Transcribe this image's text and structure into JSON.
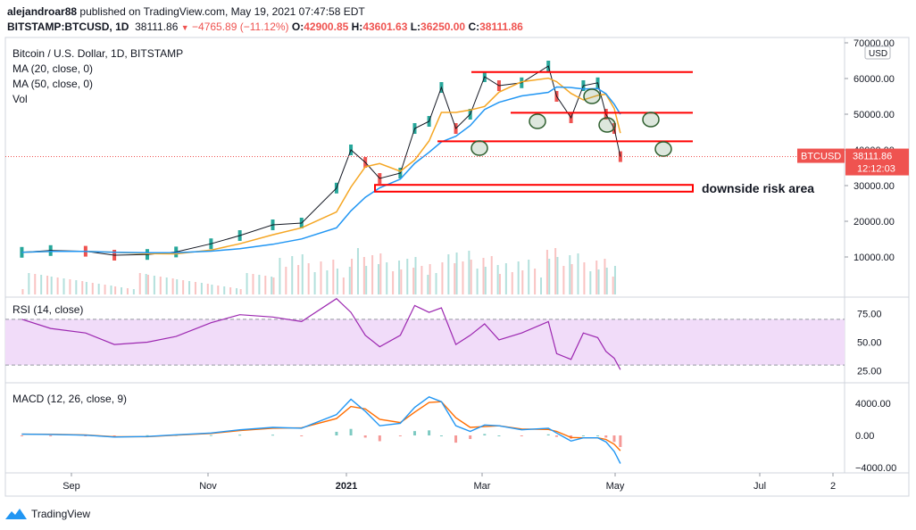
{
  "header": {
    "user": "alejandroar88",
    "published_text": "published on TradingView.com, May 19, 2021 07:47:58 EDT",
    "symbol": "BITSTAMP:BTCUSD, 1D",
    "last": "38111.86",
    "change": "−4765.89 (−11.12%)",
    "open_label": "O:",
    "open": "42900.85",
    "high_label": "H:",
    "high": "43601.63",
    "low_label": "L:",
    "low": "36250.00",
    "close_label": "C:",
    "close": "38111.86"
  },
  "legend": {
    "title": "Bitcoin / U.S. Dollar, 1D, BITSTAMP",
    "ma20": "MA (20, close, 0)",
    "ma50": "MA (50, close, 0)",
    "vol": "Vol",
    "rsi": "RSI (14, close)",
    "macd": "MACD (12, 26, close, 9)"
  },
  "price_axis": {
    "currency": "USD",
    "ticks": [
      "70000.00",
      "60000.00",
      "50000.00",
      "40000.00",
      "30000.00",
      "20000.00",
      "10000.00"
    ],
    "tag_symbol": "BTCUSD",
    "tag_price": "38111.86",
    "tag_countdown": "12:12:03"
  },
  "rsi_axis": {
    "ticks": [
      "75.00",
      "50.00",
      "25.00"
    ]
  },
  "macd_axis": {
    "ticks": [
      "4000.00",
      "0.00",
      "−4000.00"
    ]
  },
  "time_axis": {
    "labels": [
      "Sep",
      "Nov",
      "2021",
      "Mar",
      "May",
      "Jul",
      "2"
    ]
  },
  "annotation": {
    "downside": "downside risk area"
  },
  "footer": {
    "brand": "TradingView"
  },
  "colors": {
    "up": "#26a69a",
    "down": "#ef5350",
    "ma20": "#f5a623",
    "ma50": "#2196f3",
    "rsi_line": "#9c27b0",
    "rsi_band": "#f1dcf9",
    "macd_line": "#2196f3",
    "signal_line": "#ff6d00",
    "annot": "#ff0000",
    "tag_bg": "#ef5350"
  },
  "chart_data": {
    "type": "line",
    "title": "Bitcoin / U.S. Dollar, 1D, BITSTAMP",
    "x": [
      "2020-08-01",
      "2020-08-15",
      "2020-09-01",
      "2020-09-15",
      "2020-10-01",
      "2020-10-15",
      "2020-11-01",
      "2020-11-15",
      "2020-12-01",
      "2020-12-15",
      "2021-01-01",
      "2021-01-08",
      "2021-01-15",
      "2021-01-22",
      "2021-02-01",
      "2021-02-08",
      "2021-02-15",
      "2021-02-21",
      "2021-02-28",
      "2021-03-07",
      "2021-03-14",
      "2021-03-21",
      "2021-04-01",
      "2021-04-14",
      "2021-04-18",
      "2021-04-25",
      "2021-05-01",
      "2021-05-08",
      "2021-05-12",
      "2021-05-16",
      "2021-05-19"
    ],
    "series": [
      {
        "name": "BTCUSD",
        "values": [
          11300,
          11800,
          11600,
          10500,
          10700,
          11400,
          13700,
          16000,
          19000,
          19500,
          29300,
          40000,
          36500,
          32000,
          33500,
          46000,
          48000,
          57500,
          46000,
          50000,
          60500,
          58000,
          58800,
          63500,
          55000,
          49000,
          58000,
          58800,
          50000,
          46000,
          38112
        ]
      }
    ],
    "ylim": [
      0,
      70000
    ],
    "rsi": {
      "levels": [
        70,
        30
      ],
      "ticks": [
        75,
        50,
        25
      ],
      "values": [
        70,
        62,
        58,
        48,
        50,
        55,
        67,
        74,
        72,
        68,
        88,
        76,
        56,
        46,
        56,
        82,
        76,
        80,
        48,
        56,
        66,
        52,
        58,
        68,
        40,
        35,
        58,
        54,
        42,
        36,
        26
      ]
    },
    "macd": {
      "ticks": [
        4000,
        0,
        -4000
      ],
      "macd": [
        150,
        120,
        30,
        -200,
        -130,
        80,
        300,
        700,
        1000,
        900,
        2600,
        4500,
        3000,
        1200,
        1500,
        3500,
        4800,
        4200,
        1200,
        500,
        1300,
        1200,
        700,
        900,
        300,
        -700,
        -300,
        -300,
        -800,
        -2000,
        -3500
      ],
      "signal": [
        160,
        140,
        60,
        -150,
        -160,
        30,
        250,
        600,
        900,
        950,
        2100,
        3600,
        3300,
        2000,
        1600,
        2900,
        4100,
        4200,
        2200,
        1000,
        1100,
        1200,
        800,
        750,
        500,
        -250,
        -300,
        -300,
        -500,
        -1100,
        -1900
      ]
    },
    "annotations": {
      "horizontal_levels": [
        61800,
        50400,
        42400
      ],
      "risk_zone": [
        28300,
        30200
      ]
    }
  }
}
